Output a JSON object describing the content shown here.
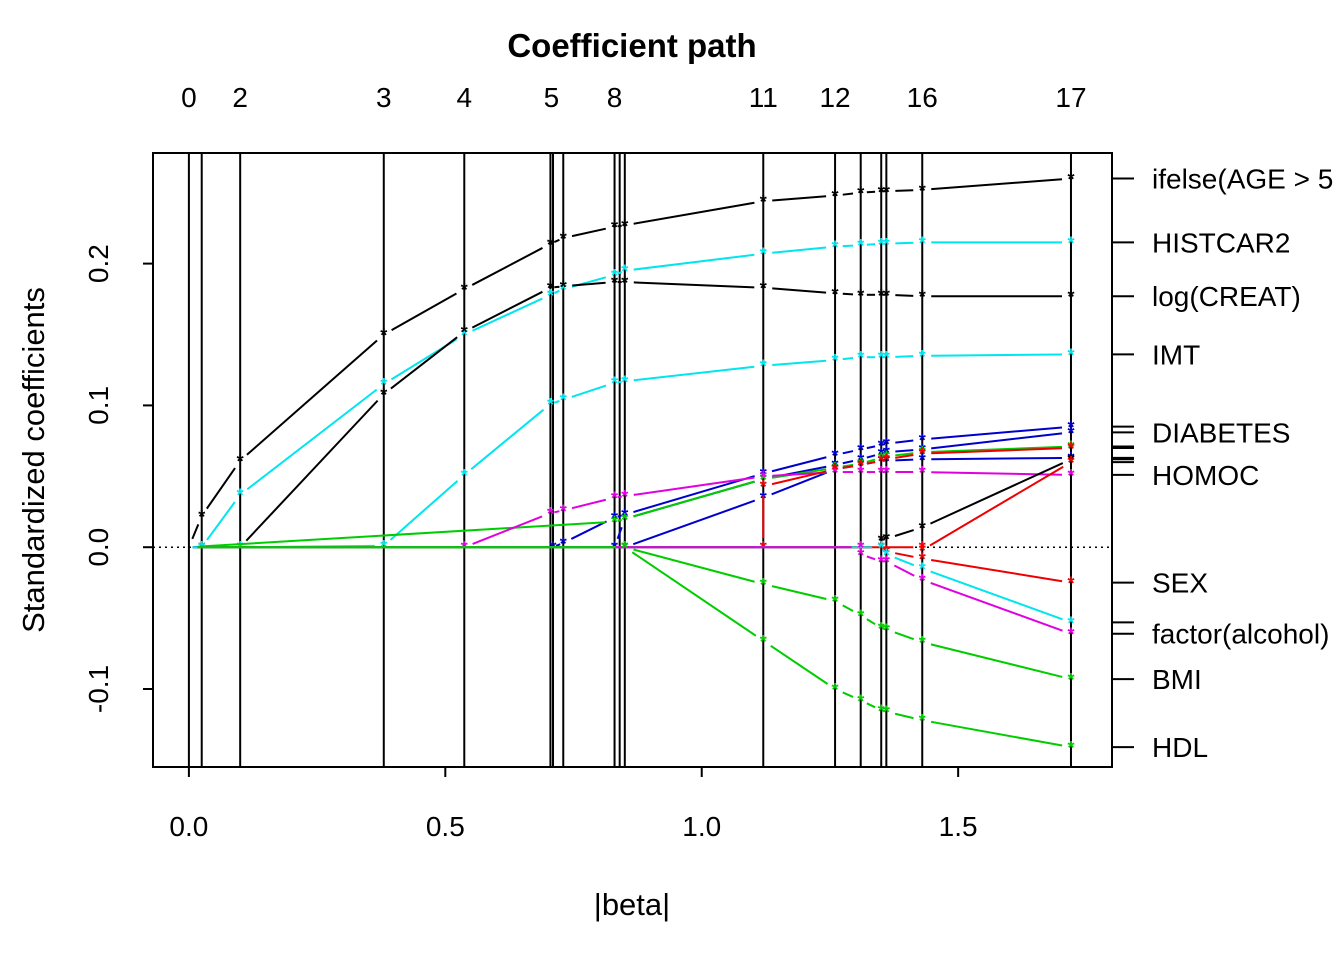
{
  "chart_data": {
    "type": "line",
    "title": "Coefficient path",
    "xlabel": "|beta|",
    "ylabel": "Standardized coefficients",
    "xlim": [
      -0.07,
      1.8
    ],
    "ylim": [
      -0.155,
      0.278
    ],
    "x_ticks": [
      "0.0",
      "0.5",
      "1.0",
      "1.5"
    ],
    "x_tick_values": [
      0,
      0.5,
      1.0,
      1.5
    ],
    "y_ticks": [
      "-0.1",
      "0.0",
      "0.1",
      "0.2"
    ],
    "y_tick_values": [
      -0.1,
      0,
      0.1,
      0.2
    ],
    "top_axis": {
      "labels": [
        "0",
        "2",
        "3",
        "4",
        "5",
        "8",
        "11",
        "12",
        "16",
        "17"
      ],
      "values": [
        0,
        0.1,
        0.38,
        0.537,
        0.707,
        0.83,
        1.12,
        1.26,
        1.43,
        1.72
      ]
    },
    "step_values": [
      0,
      0.025,
      0.1,
      0.38,
      0.537,
      0.705,
      0.71,
      0.73,
      0.83,
      0.84,
      0.85,
      1.12,
      1.26,
      1.31,
      1.35,
      1.36,
      1.43,
      1.72
    ],
    "zero_line": 0,
    "series": [
      {
        "name": "ifelse(AGE > 5",
        "color": "#000000",
        "points": [
          [
            0,
            0
          ],
          [
            0.025,
            0.022
          ],
          [
            0.1,
            0.061
          ],
          [
            0.38,
            0.15
          ],
          [
            0.537,
            0.182
          ],
          [
            0.705,
            0.214
          ],
          [
            0.73,
            0.218
          ],
          [
            0.83,
            0.226
          ],
          [
            0.85,
            0.227
          ],
          [
            1.12,
            0.244
          ],
          [
            1.26,
            0.248
          ],
          [
            1.31,
            0.25
          ],
          [
            1.35,
            0.251
          ],
          [
            1.36,
            0.251
          ],
          [
            1.43,
            0.252
          ],
          [
            1.72,
            0.26
          ]
        ]
      },
      {
        "name": "HISTCAR2",
        "color": "#00E5EE",
        "points": [
          [
            0,
            0
          ],
          [
            0.025,
            0
          ],
          [
            0.1,
            0.037
          ],
          [
            0.38,
            0.115
          ],
          [
            0.537,
            0.15
          ],
          [
            0.705,
            0.178
          ],
          [
            0.73,
            0.182
          ],
          [
            0.83,
            0.192
          ],
          [
            0.85,
            0.195
          ],
          [
            1.12,
            0.207
          ],
          [
            1.26,
            0.212
          ],
          [
            1.31,
            0.213
          ],
          [
            1.35,
            0.214
          ],
          [
            1.36,
            0.214
          ],
          [
            1.43,
            0.215
          ],
          [
            1.72,
            0.215
          ]
        ]
      },
      {
        "name": "log(CREAT)",
        "color": "#000000",
        "points": [
          [
            0,
            0
          ],
          [
            0.025,
            0
          ],
          [
            0.1,
            0
          ],
          [
            0.38,
            0.108
          ],
          [
            0.537,
            0.152
          ],
          [
            0.705,
            0.183
          ],
          [
            0.73,
            0.184
          ],
          [
            0.83,
            0.187
          ],
          [
            0.85,
            0.187
          ],
          [
            1.12,
            0.183
          ],
          [
            1.26,
            0.179
          ],
          [
            1.31,
            0.178
          ],
          [
            1.35,
            0.178
          ],
          [
            1.36,
            0.178
          ],
          [
            1.43,
            0.177
          ],
          [
            1.72,
            0.177
          ]
        ]
      },
      {
        "name": "IMT",
        "color": "#00E5EE",
        "points": [
          [
            0,
            0
          ],
          [
            0.025,
            0
          ],
          [
            0.1,
            0
          ],
          [
            0.38,
            0.001
          ],
          [
            0.537,
            0.051
          ],
          [
            0.705,
            0.101
          ],
          [
            0.73,
            0.104
          ],
          [
            0.83,
            0.116
          ],
          [
            0.85,
            0.117
          ],
          [
            1.12,
            0.128
          ],
          [
            1.26,
            0.132
          ],
          [
            1.31,
            0.134
          ],
          [
            1.35,
            0.134
          ],
          [
            1.36,
            0.134
          ],
          [
            1.43,
            0.135
          ],
          [
            1.72,
            0.136
          ]
        ]
      },
      {
        "name": "DIABETES",
        "color": "#0000CD",
        "points": [
          [
            0,
            0
          ],
          [
            0.71,
            0
          ],
          [
            0.73,
            0.003
          ],
          [
            0.83,
            0.021
          ],
          [
            0.85,
            0.023
          ],
          [
            1.12,
            0.052
          ],
          [
            1.26,
            0.065
          ],
          [
            1.31,
            0.069
          ],
          [
            1.35,
            0.072
          ],
          [
            1.36,
            0.073
          ],
          [
            1.43,
            0.076
          ],
          [
            1.72,
            0.085
          ]
        ]
      },
      {
        "name": "",
        "color": "#0000CD",
        "points": [
          [
            0,
            0
          ],
          [
            0.83,
            0
          ],
          [
            0.85,
            0.02
          ],
          [
            1.12,
            0.048
          ],
          [
            1.26,
            0.058
          ],
          [
            1.31,
            0.062
          ],
          [
            1.35,
            0.066
          ],
          [
            1.36,
            0.067
          ],
          [
            1.43,
            0.069
          ],
          [
            1.72,
            0.081
          ]
        ]
      },
      {
        "name": "",
        "color": "#00CD00",
        "points": [
          [
            0,
            0
          ],
          [
            0.83,
            0.018
          ],
          [
            0.85,
            0.02
          ],
          [
            1.12,
            0.048
          ],
          [
            1.26,
            0.056
          ],
          [
            1.31,
            0.059
          ],
          [
            1.35,
            0.063
          ],
          [
            1.36,
            0.064
          ],
          [
            1.43,
            0.067
          ],
          [
            1.72,
            0.071
          ]
        ]
      },
      {
        "name": "",
        "color": "#0000CD",
        "points": [
          [
            0,
            0
          ],
          [
            0.85,
            0
          ],
          [
            1.12,
            0.035
          ],
          [
            1.26,
            0.055
          ],
          [
            1.31,
            0.058
          ],
          [
            1.35,
            0.061
          ],
          [
            1.36,
            0.061
          ],
          [
            1.43,
            0.062
          ],
          [
            1.72,
            0.063
          ]
        ]
      },
      {
        "name": "HOMOC",
        "color": "#E000E0",
        "points": [
          [
            0,
            0
          ],
          [
            0.537,
            0
          ],
          [
            0.705,
            0.024
          ],
          [
            0.73,
            0.026
          ],
          [
            0.83,
            0.035
          ],
          [
            0.85,
            0.036
          ],
          [
            1.12,
            0.05
          ],
          [
            1.26,
            0.053
          ],
          [
            1.31,
            0.053
          ],
          [
            1.35,
            0.053
          ],
          [
            1.36,
            0.053
          ],
          [
            1.43,
            0.053
          ],
          [
            1.72,
            0.051
          ]
        ]
      },
      {
        "name": "",
        "color": "#EE0000",
        "points": [
          [
            0,
            0
          ],
          [
            1.12,
            0
          ],
          [
            1.12,
            0.043
          ],
          [
            1.26,
            0.055
          ],
          [
            1.31,
            0.058
          ],
          [
            1.35,
            0.061
          ],
          [
            1.36,
            0.062
          ],
          [
            1.43,
            0.066
          ],
          [
            1.72,
            0.07
          ]
        ]
      },
      {
        "name": "",
        "color": "#000000",
        "points": [
          [
            0,
            0
          ],
          [
            1.35,
            0
          ],
          [
            1.35,
            0.005
          ],
          [
            1.36,
            0.006
          ],
          [
            1.43,
            0.014
          ],
          [
            1.72,
            0.062
          ]
        ]
      },
      {
        "name": "",
        "color": "#EE0000",
        "points": [
          [
            0,
            0
          ],
          [
            1.43,
            0
          ],
          [
            1.43,
            -0.002
          ],
          [
            1.72,
            0.06
          ]
        ]
      },
      {
        "name": "SEX",
        "color": "#EE0000",
        "points": [
          [
            0,
            0
          ],
          [
            1.35,
            0
          ],
          [
            1.36,
            -0.003
          ],
          [
            1.43,
            -0.008
          ],
          [
            1.72,
            -0.025
          ]
        ]
      },
      {
        "name": "factor(alcohol)",
        "color": "#00E5EE",
        "points": [
          [
            0,
            0
          ],
          [
            1.35,
            0
          ],
          [
            1.36,
            -0.005
          ],
          [
            1.43,
            -0.015
          ],
          [
            1.72,
            -0.053
          ]
        ]
      },
      {
        "name": "",
        "color": "#E000E0",
        "points": [
          [
            0,
            0
          ],
          [
            1.31,
            0
          ],
          [
            1.31,
            -0.005
          ],
          [
            1.35,
            -0.01
          ],
          [
            1.36,
            -0.01
          ],
          [
            1.43,
            -0.023
          ],
          [
            1.72,
            -0.061
          ]
        ]
      },
      {
        "name": "BMI",
        "color": "#00CD00",
        "points": [
          [
            0,
            0
          ],
          [
            0.85,
            0
          ],
          [
            1.12,
            -0.026
          ],
          [
            1.26,
            -0.038
          ],
          [
            1.31,
            -0.048
          ],
          [
            1.35,
            -0.057
          ],
          [
            1.36,
            -0.058
          ],
          [
            1.43,
            -0.067
          ],
          [
            1.72,
            -0.093
          ]
        ]
      },
      {
        "name": "HDL",
        "color": "#00CD00",
        "points": [
          [
            0,
            0
          ],
          [
            0.85,
            0
          ],
          [
            1.12,
            -0.066
          ],
          [
            1.26,
            -0.1
          ],
          [
            1.31,
            -0.108
          ],
          [
            1.35,
            -0.115
          ],
          [
            1.36,
            -0.116
          ],
          [
            1.43,
            -0.122
          ],
          [
            1.72,
            -0.141
          ]
        ]
      }
    ],
    "right_labels": [
      {
        "text": "ifelse(AGE > 5",
        "y": 0.26
      },
      {
        "text": "HISTCAR2",
        "y": 0.215
      },
      {
        "text": "log(CREAT)",
        "y": 0.177
      },
      {
        "text": "IMT",
        "y": 0.136
      },
      {
        "text": "DIABETES",
        "y": 0.081
      },
      {
        "text": "HOMOC",
        "y": 0.051
      },
      {
        "text": "SEX",
        "y": -0.025
      },
      {
        "text": "factor(alcohol)",
        "y": -0.061
      },
      {
        "text": "BMI",
        "y": -0.093
      },
      {
        "text": "HDL",
        "y": -0.141
      }
    ],
    "right_ticks_only": [
      0.085,
      0.071,
      0.07,
      0.063,
      0.062,
      0.06,
      -0.053
    ],
    "grid": false,
    "legend": "none"
  }
}
